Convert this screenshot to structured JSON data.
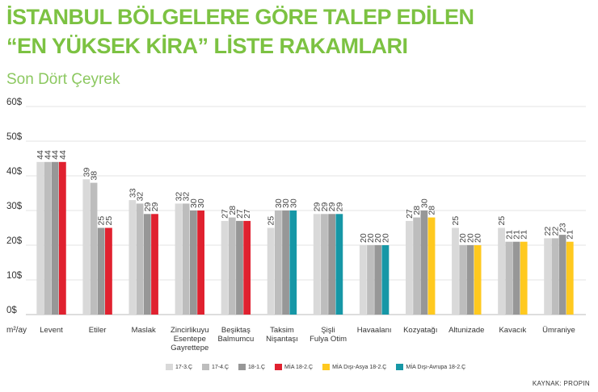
{
  "header": {
    "title_line1": "İSTANBUL BÖLGELERE GÖRE TALEP EDİLEN",
    "title_line2": "“EN YÜKSEK KİRA” LİSTE RAKAMLARI",
    "subtitle": "Son Dört Çeyrek"
  },
  "source": "KAYNAK: PROPIN",
  "chart_data": {
    "type": "bar",
    "unit_label": "m²/ay",
    "ylim": [
      0,
      60
    ],
    "y_ticks": [
      "0$",
      "10$",
      "20$",
      "30$",
      "40$",
      "50$",
      "60$"
    ],
    "grid": true,
    "legend_position": "bottom",
    "categories": [
      [
        "Levent"
      ],
      [
        "Etiler"
      ],
      [
        "Maslak"
      ],
      [
        "Zincirlikuyu",
        "Esentepe",
        "Gayrettepe"
      ],
      [
        "Beşiktaş",
        "Balmumcu"
      ],
      [
        "Taksim",
        "Nişantaşı"
      ],
      [
        "Şişli",
        "Fulya Otim"
      ],
      [
        "Havaalanı"
      ],
      [
        "Kozyatağı"
      ],
      [
        "Altunizade"
      ],
      [
        "Kavacık"
      ],
      [
        "Ümraniye"
      ]
    ],
    "series_legend": [
      {
        "name": "17-3.Ç",
        "color": "#d9d9d9"
      },
      {
        "name": "17-4.Ç",
        "color": "#bdbdbd"
      },
      {
        "name": "18-1.Ç",
        "color": "#979797"
      },
      {
        "name": "MİA 18-2.Ç",
        "color": "#e0212f"
      },
      {
        "name": "MİA Dışı-Asya 18-2.Ç",
        "color": "#ffc91f"
      },
      {
        "name": "MİA Dışı-Avrupa 18-2.Ç",
        "color": "#1697a6"
      }
    ],
    "groups": [
      {
        "values": [
          44,
          44,
          44,
          44
        ],
        "last_type": "MİA 18-2.Ç"
      },
      {
        "values": [
          39,
          38,
          25,
          25
        ],
        "last_type": "MİA 18-2.Ç"
      },
      {
        "values": [
          33,
          32,
          29,
          29
        ],
        "last_type": "MİA 18-2.Ç"
      },
      {
        "values": [
          32,
          32,
          30,
          30
        ],
        "last_type": "MİA 18-2.Ç"
      },
      {
        "values": [
          27,
          28,
          27,
          27
        ],
        "last_type": "MİA 18-2.Ç"
      },
      {
        "values": [
          25,
          30,
          30,
          30
        ],
        "last_type": "MİA Dışı-Avrupa 18-2.Ç"
      },
      {
        "values": [
          29,
          29,
          29,
          29
        ],
        "last_type": "MİA Dışı-Avrupa 18-2.Ç"
      },
      {
        "values": [
          20,
          20,
          20,
          20
        ],
        "last_type": "MİA Dışı-Avrupa 18-2.Ç"
      },
      {
        "values": [
          27,
          28,
          30,
          28
        ],
        "last_type": "MİA Dışı-Asya 18-2.Ç"
      },
      {
        "values": [
          25,
          20,
          20,
          20
        ],
        "last_type": "MİA Dışı-Asya 18-2.Ç"
      },
      {
        "values": [
          25,
          21,
          21,
          21
        ],
        "last_type": "MİA Dışı-Asya 18-2.Ç"
      },
      {
        "values": [
          22,
          22,
          23,
          21
        ],
        "last_type": "MİA Dışı-Asya 18-2.Ç"
      }
    ]
  }
}
